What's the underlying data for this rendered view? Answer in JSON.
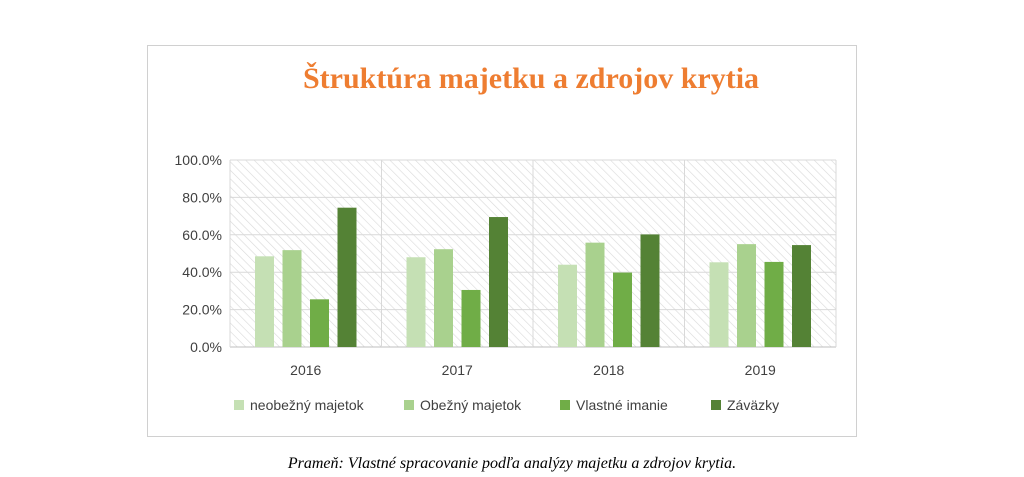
{
  "caption": "Prameň: Vlastné spracovanie podľa analýzy majetku a zdrojov krytia.",
  "chart_data": {
    "type": "bar",
    "title": "Štruktúra majetku a zdrojov krytia",
    "categories": [
      "2016",
      "2017",
      "2018",
      "2019"
    ],
    "ylim": [
      0,
      100
    ],
    "yticks": [
      "0.0%",
      "20.0%",
      "40.0%",
      "60.0%",
      "80.0%",
      "100.0%"
    ],
    "grid": true,
    "legend_position": "bottom",
    "series": [
      {
        "name": "neobežný majetok",
        "color": "#c5e0b4",
        "values": [
          48.5,
          48.0,
          44.0,
          45.3
        ]
      },
      {
        "name": "Obežný majetok",
        "color": "#a9d18e",
        "values": [
          51.8,
          52.3,
          55.8,
          55.0
        ]
      },
      {
        "name": "Vlastné imanie",
        "color": "#70ad47",
        "values": [
          25.5,
          30.5,
          39.8,
          45.5
        ]
      },
      {
        "name": "Záväzky",
        "color": "#548235",
        "values": [
          74.5,
          69.5,
          60.2,
          54.5
        ]
      }
    ]
  }
}
